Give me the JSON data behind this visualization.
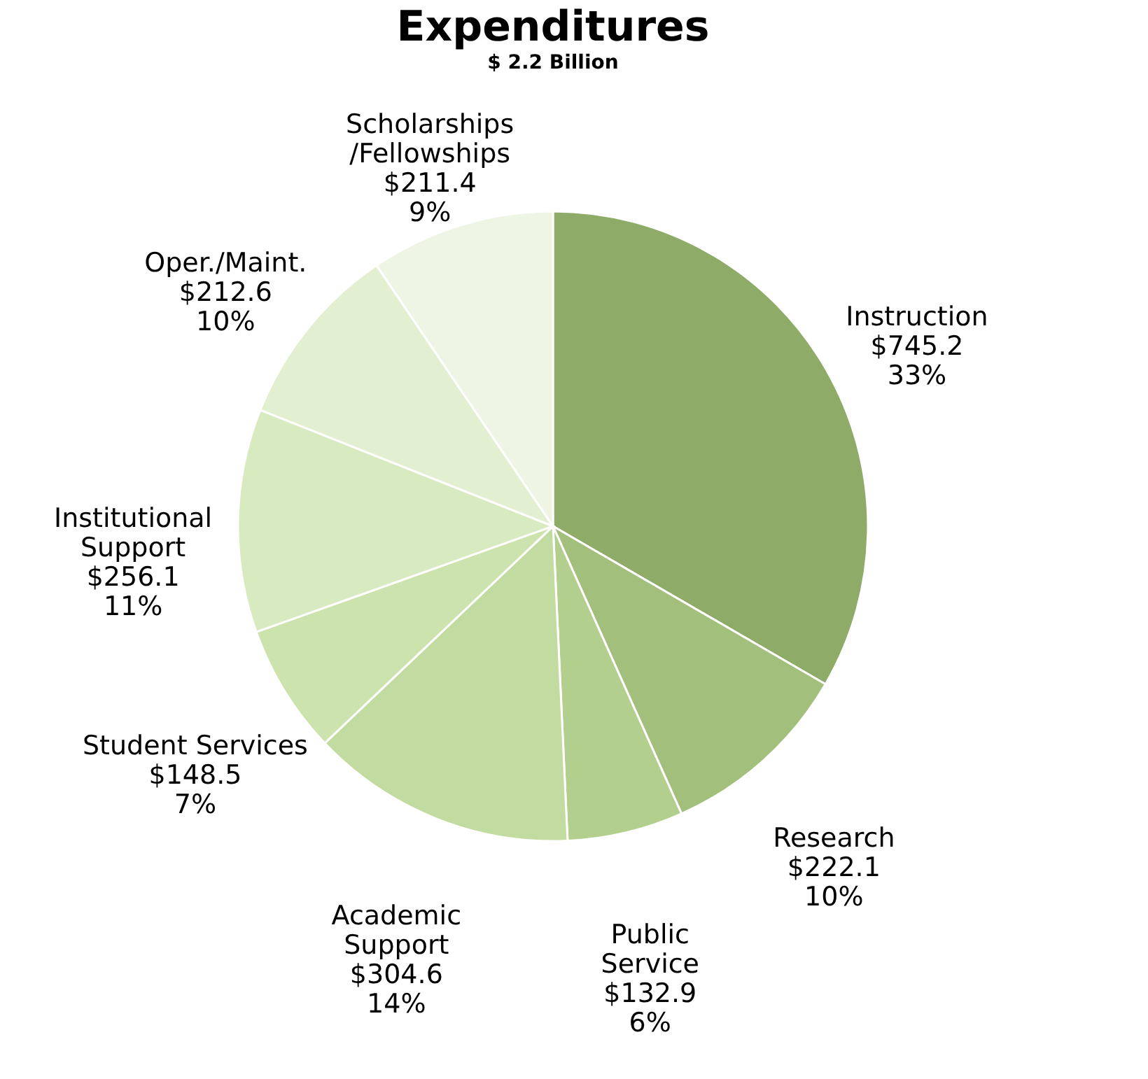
{
  "chart_data": {
    "type": "pie",
    "title": "Expenditures",
    "subtitle": "$ 2.2 Billion",
    "categories": [
      "Instruction",
      "Research",
      "Public\nService",
      "Academic\nSupport",
      "Student Services",
      "Institutional\nSupport",
      "Oper./Maint.",
      "Scholarships\n/Fellowships"
    ],
    "values": [
      745.2,
      222.1,
      132.9,
      304.6,
      148.5,
      256.1,
      212.6,
      211.4
    ],
    "value_labels": [
      "$745.2\n33%",
      "$222.1\n10%",
      "$132.9\n6%",
      "$304.6\n14%",
      "$148.5\n7%",
      "$256.1\n11%",
      "$212.6\n10%",
      "$211.4\n9%"
    ],
    "colors": [
      "#8fab68",
      "#a2c07c",
      "#b3cf8e",
      "#c2dba0",
      "#cde3ae",
      "#d8eabf",
      "#e3efd1",
      "#eef5e4"
    ],
    "legend": false
  }
}
